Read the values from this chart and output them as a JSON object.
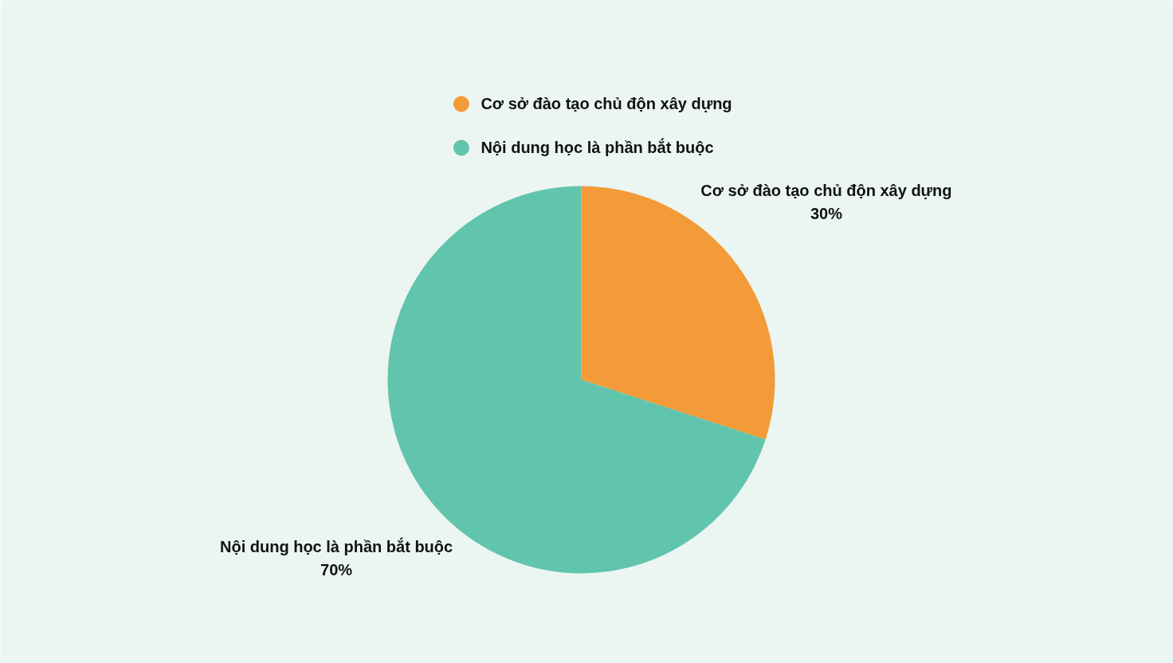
{
  "chart_data": {
    "type": "pie",
    "categories": [
      "Cơ sở đào tạo chủ độn xây dựng",
      "Nội dung học là phần bắt buộc"
    ],
    "values": [
      30,
      70
    ],
    "colors": [
      "#f29b38",
      "#61c4ac"
    ],
    "value_labels": [
      "30%",
      "70%"
    ],
    "legend": "top"
  }
}
